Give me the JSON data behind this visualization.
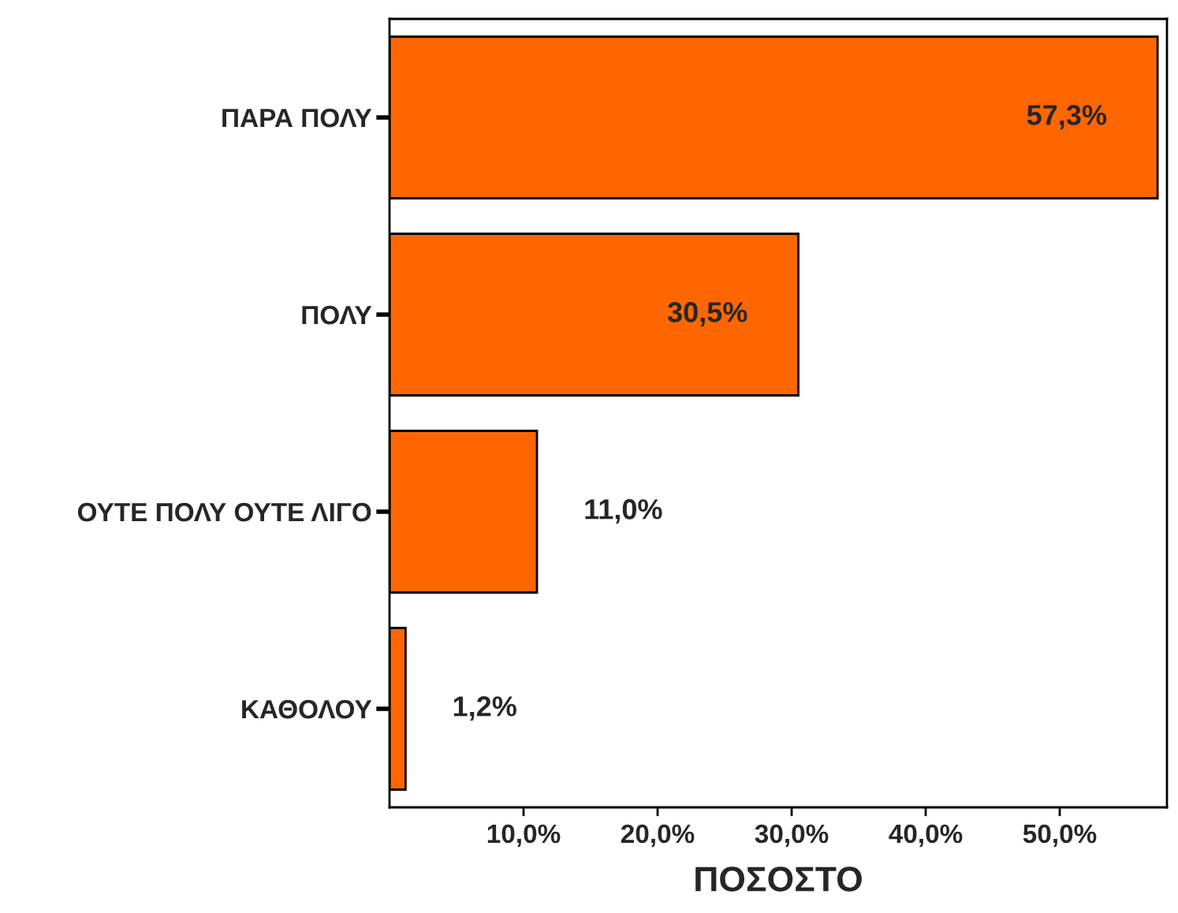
{
  "chart_data": {
    "type": "bar",
    "orientation": "horizontal",
    "categories": [
      "ΠΑΡΑ ΠΟΛΥ",
      "ΠΟΛΥ",
      "ΟΥΤΕ ΠΟΛΥ ΟΥΤΕ ΛΙΓΟ",
      "ΚΑΘΟΛΟΥ"
    ],
    "values": [
      57.3,
      30.5,
      11.0,
      1.2
    ],
    "value_labels": [
      "57,3%",
      "30,5%",
      "11,0%",
      "1,2%"
    ],
    "color": "#ff6600",
    "xlabel": "ΠΟΣΟΣΤΟ",
    "xlim": [
      0,
      58
    ],
    "xticks": [
      {
        "value": 10,
        "label": "10,0%"
      },
      {
        "value": 20,
        "label": "20,0%"
      },
      {
        "value": 30,
        "label": "30,0%"
      },
      {
        "value": 40,
        "label": "40,0%"
      },
      {
        "value": 50,
        "label": "50,0%"
      }
    ],
    "grid": false,
    "legend": false
  }
}
